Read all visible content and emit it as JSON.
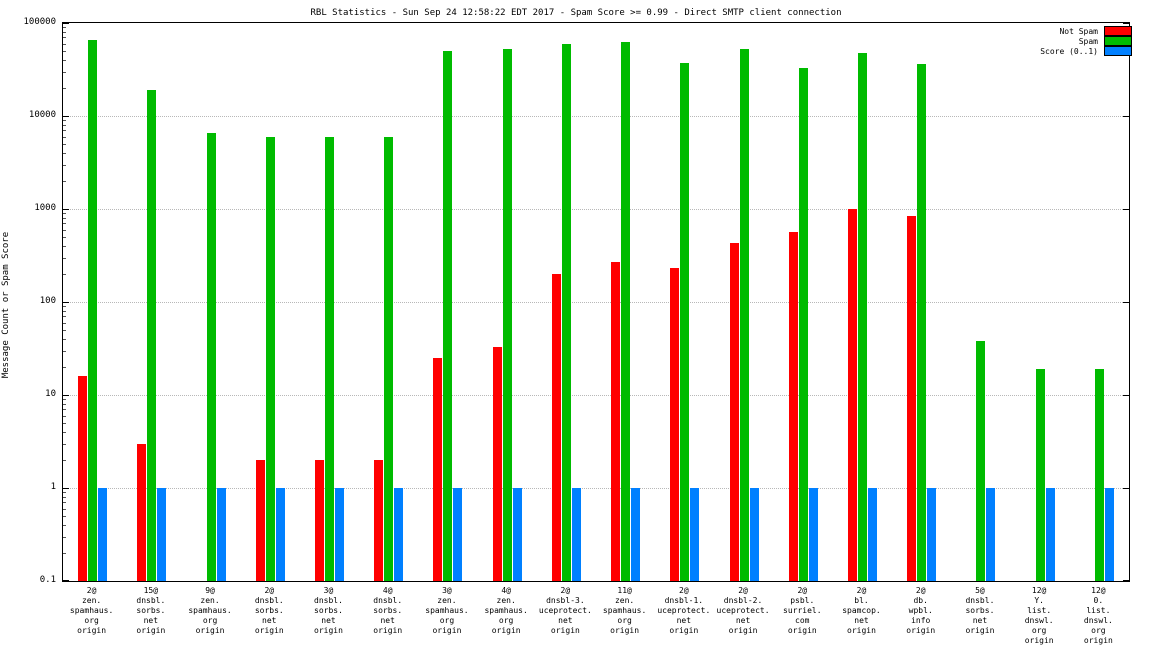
{
  "title": "RBL Statistics - Sun Sep 24 12:58:22 EDT 2017 - Spam Score >= 0.99 - Direct SMTP client connection",
  "ylabel": "Message Count or Spam Score",
  "legend": {
    "items": [
      {
        "label": "Not Spam",
        "color": "#ff0000"
      },
      {
        "label": "Spam",
        "color": "#00bb00"
      },
      {
        "label": "Score (0..1)",
        "color": "#0080ff"
      }
    ]
  },
  "chart_data": {
    "type": "bar",
    "title": "RBL Statistics - Sun Sep 24 12:58:22 EDT 2017 - Spam Score >= 0.99 - Direct SMTP client connection",
    "xlabel": "",
    "ylabel": "Message Count or Spam Score",
    "yscale": "log",
    "ylim": [
      0.1,
      100000
    ],
    "yticks": [
      100000,
      10000,
      1000,
      100,
      10,
      1,
      0.1
    ],
    "grid": true,
    "legend_position": "top-right",
    "categories": [
      [
        "2@",
        "zen.",
        "spamhaus.",
        "org",
        "origin"
      ],
      [
        "15@",
        "dnsbl.",
        "sorbs.",
        "net",
        "origin"
      ],
      [
        "9@",
        "zen.",
        "spamhaus.",
        "org",
        "origin"
      ],
      [
        "2@",
        "dnsbl.",
        "sorbs.",
        "net",
        "origin"
      ],
      [
        "3@",
        "dnsbl.",
        "sorbs.",
        "net",
        "origin"
      ],
      [
        "4@",
        "dnsbl.",
        "sorbs.",
        "net",
        "origin"
      ],
      [
        "3@",
        "zen.",
        "spamhaus.",
        "org",
        "origin"
      ],
      [
        "4@",
        "zen.",
        "spamhaus.",
        "org",
        "origin"
      ],
      [
        "2@",
        "dnsbl-3.",
        "uceprotect.",
        "net",
        "origin"
      ],
      [
        "11@",
        "zen.",
        "spamhaus.",
        "org",
        "origin"
      ],
      [
        "2@",
        "dnsbl-1.",
        "uceprotect.",
        "net",
        "origin"
      ],
      [
        "2@",
        "dnsbl-2.",
        "uceprotect.",
        "net",
        "origin"
      ],
      [
        "2@",
        "psbl.",
        "surriel.",
        "com",
        "origin"
      ],
      [
        "2@",
        "bl.",
        "spamcop.",
        "net",
        "origin"
      ],
      [
        "2@",
        "db.",
        "wpbl.",
        "info",
        "origin"
      ],
      [
        "5@",
        "dnsbl.",
        "sorbs.",
        "net",
        "origin"
      ],
      [
        "12@",
        "Y.",
        "list.",
        "dnswl.",
        "org",
        "origin"
      ],
      [
        "12@",
        "0.",
        "list.",
        "dnswl.",
        "org",
        "origin"
      ]
    ],
    "series": [
      {
        "name": "Not Spam",
        "color": "#ff0000",
        "values": [
          16,
          3,
          null,
          2,
          2,
          2,
          25,
          33,
          200,
          270,
          230,
          430,
          560,
          1000,
          850,
          null,
          null,
          null
        ]
      },
      {
        "name": "Spam",
        "color": "#00bb00",
        "values": [
          65000,
          19000,
          6500,
          6000,
          6000,
          6000,
          50000,
          52000,
          60000,
          63000,
          37000,
          52000,
          33000,
          48000,
          36000,
          38,
          19,
          19
        ]
      },
      {
        "name": "Score (0..1)",
        "color": "#0080ff",
        "values": [
          1,
          1,
          1,
          1,
          1,
          1,
          1,
          1,
          1,
          1,
          1,
          1,
          1,
          1,
          1,
          1,
          1,
          1
        ]
      }
    ]
  }
}
